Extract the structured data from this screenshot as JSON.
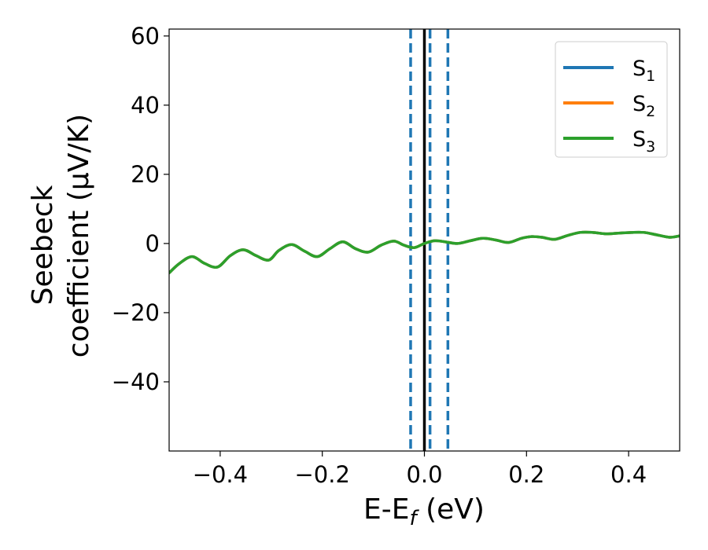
{
  "chart_data": {
    "type": "line",
    "xlabel": {
      "main": "E-E",
      "sub": "f",
      "unit": " (eV)"
    },
    "ylabel": {
      "line1": "Seebeck",
      "line2": "coefficient  (μV/K)"
    },
    "xlim": [
      -0.5,
      0.5
    ],
    "ylim": [
      -60,
      62
    ],
    "xticks": [
      -0.4,
      -0.2,
      0.0,
      0.2,
      0.4
    ],
    "xtick_labels": [
      "−0.4",
      "−0.2",
      "0.0",
      "0.2",
      "0.4"
    ],
    "yticks": [
      -40,
      -20,
      0,
      20,
      40,
      60
    ],
    "ytick_labels": [
      "−40",
      "−20",
      "0",
      "20",
      "40",
      "60"
    ],
    "grid": false,
    "legend_position": "top-right",
    "x": [
      -0.5,
      -0.48,
      -0.455,
      -0.43,
      -0.405,
      -0.38,
      -0.355,
      -0.33,
      -0.305,
      -0.285,
      -0.26,
      -0.235,
      -0.21,
      -0.185,
      -0.16,
      -0.135,
      -0.11,
      -0.085,
      -0.06,
      -0.04,
      -0.02,
      0.0,
      0.02,
      0.04,
      0.065,
      0.09,
      0.115,
      0.14,
      0.165,
      0.19,
      0.21,
      0.23,
      0.255,
      0.28,
      0.305,
      0.33,
      0.355,
      0.38,
      0.405,
      0.43,
      0.455,
      0.48,
      0.5
    ],
    "series": [
      {
        "name": "S",
        "sub": "1",
        "color": "#1f77b4",
        "values": [
          -8.5,
          -5.8,
          -3.8,
          -5.8,
          -6.8,
          -3.5,
          -1.8,
          -3.5,
          -4.8,
          -2.0,
          -0.3,
          -2.2,
          -3.8,
          -1.5,
          0.5,
          -1.5,
          -2.5,
          -0.5,
          0.7,
          -0.5,
          -1.2,
          0.0,
          0.8,
          0.5,
          0.0,
          0.8,
          1.5,
          1.0,
          0.3,
          1.5,
          2.0,
          1.8,
          1.2,
          2.3,
          3.2,
          3.2,
          2.8,
          3.0,
          3.2,
          3.2,
          2.5,
          1.8,
          2.2
        ]
      },
      {
        "name": "S",
        "sub": "2",
        "color": "#ff7f0e",
        "values": [
          -8.5,
          -5.8,
          -3.8,
          -5.8,
          -6.8,
          -3.5,
          -1.8,
          -3.5,
          -4.8,
          -2.0,
          -0.3,
          -2.2,
          -3.8,
          -1.5,
          0.5,
          -1.5,
          -2.5,
          -0.5,
          0.7,
          -0.5,
          -1.2,
          0.0,
          0.8,
          0.5,
          0.0,
          0.8,
          1.5,
          1.0,
          0.3,
          1.5,
          2.0,
          1.8,
          1.2,
          2.3,
          3.2,
          3.2,
          2.8,
          3.0,
          3.2,
          3.2,
          2.5,
          1.8,
          2.2
        ]
      },
      {
        "name": "S",
        "sub": "3",
        "color": "#2ca02c",
        "values": [
          -8.5,
          -5.8,
          -3.8,
          -5.8,
          -6.8,
          -3.5,
          -1.8,
          -3.5,
          -4.8,
          -2.0,
          -0.3,
          -2.2,
          -3.8,
          -1.5,
          0.5,
          -1.5,
          -2.5,
          -0.5,
          0.7,
          -0.5,
          -1.2,
          0.0,
          0.8,
          0.5,
          0.0,
          0.8,
          1.5,
          1.0,
          0.3,
          1.5,
          2.0,
          1.8,
          1.2,
          2.3,
          3.2,
          3.2,
          2.8,
          3.0,
          3.2,
          3.2,
          2.5,
          1.8,
          2.2
        ]
      }
    ],
    "vlines": [
      {
        "x": 0.0,
        "style": "solid",
        "color": "#000000"
      },
      {
        "x": -0.027,
        "style": "dashed",
        "color": "#1f77b4"
      },
      {
        "x": 0.011,
        "style": "dashed",
        "color": "#1f77b4"
      },
      {
        "x": 0.046,
        "style": "dashed",
        "color": "#1f77b4"
      }
    ]
  }
}
